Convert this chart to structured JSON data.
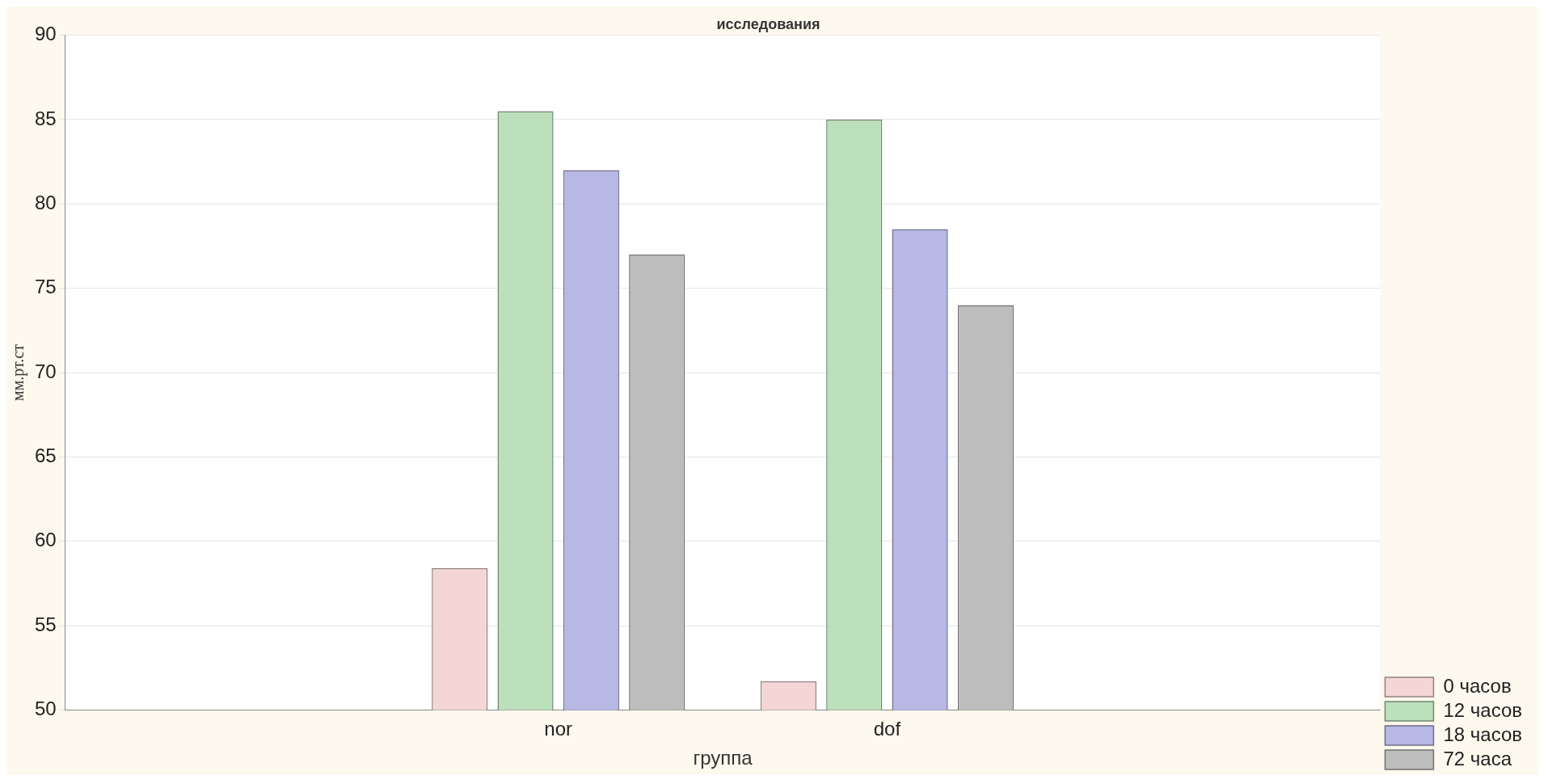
{
  "chart_data": {
    "type": "bar",
    "title": "исследования",
    "xlabel": "группа",
    "ylabel": "мм.рт.ст",
    "categories": [
      null,
      "nor",
      "dof",
      null
    ],
    "series": [
      {
        "name": "0 часов",
        "color": "#f5d6d6",
        "values": [
          null,
          58.4,
          51.7,
          null
        ]
      },
      {
        "name": "12 часов",
        "color": "#bcdfbc",
        "values": [
          null,
          85.5,
          85.0,
          null
        ]
      },
      {
        "name": "18 часов",
        "color": "#b8b8e4",
        "values": [
          null,
          82.0,
          78.5,
          null
        ]
      },
      {
        "name": "72 часа",
        "color": "#bdbdbd",
        "values": [
          null,
          77.0,
          74.0,
          null
        ]
      }
    ],
    "ylim": [
      50,
      90
    ],
    "yticks": [
      50,
      55,
      60,
      65,
      70,
      75,
      80,
      85,
      90
    ],
    "grid": "y",
    "legend": "bottom right"
  }
}
